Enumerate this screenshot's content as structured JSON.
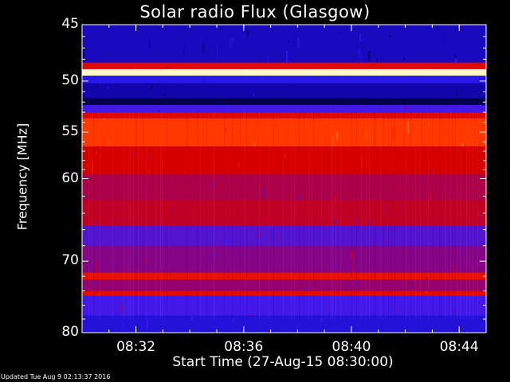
{
  "chart_data": {
    "type": "heatmap",
    "title": "Solar radio Flux (Glasgow)",
    "ylabel": "Frequency [MHz]",
    "xlabel": "Start Time (27-Aug-15 08:30:00)",
    "xlim": [
      "08:30",
      "08:45"
    ],
    "ylim": [
      45,
      80
    ],
    "y_scale": "log",
    "x_ticks": [
      "08:32",
      "08:36",
      "08:40",
      "08:44"
    ],
    "y_ticks": [
      45,
      50,
      55,
      60,
      70,
      80
    ],
    "colormap": "black-blue-red-yellow-white",
    "bands": [
      {
        "from": 45.0,
        "to": 48.3,
        "level": 0.18
      },
      {
        "from": 48.3,
        "to": 48.9,
        "level": 0.55
      },
      {
        "from": 48.9,
        "to": 49.5,
        "level": 0.97
      },
      {
        "from": 49.5,
        "to": 50.2,
        "level": 0.25
      },
      {
        "from": 50.2,
        "to": 51.6,
        "level": 0.15
      },
      {
        "from": 51.6,
        "to": 52.3,
        "level": 0.06
      },
      {
        "from": 52.3,
        "to": 53.0,
        "level": 0.3
      },
      {
        "from": 53.0,
        "to": 53.6,
        "level": 0.55
      },
      {
        "from": 53.6,
        "to": 56.5,
        "level": 0.68
      },
      {
        "from": 56.5,
        "to": 59.5,
        "level": 0.52
      },
      {
        "from": 59.5,
        "to": 62.5,
        "level": 0.44
      },
      {
        "from": 62.5,
        "to": 65.5,
        "level": 0.48
      },
      {
        "from": 65.5,
        "to": 68.0,
        "level": 0.32
      },
      {
        "from": 68.0,
        "to": 71.5,
        "level": 0.38
      },
      {
        "from": 71.5,
        "to": 72.5,
        "level": 0.58
      },
      {
        "from": 72.5,
        "to": 74.0,
        "level": 0.4
      },
      {
        "from": 74.0,
        "to": 74.7,
        "level": 0.56
      },
      {
        "from": 74.7,
        "to": 77.5,
        "level": 0.3
      },
      {
        "from": 77.5,
        "to": 80.0,
        "level": 0.22
      }
    ]
  },
  "footer": "Updated Tue Aug  9 02:13:37 2016"
}
